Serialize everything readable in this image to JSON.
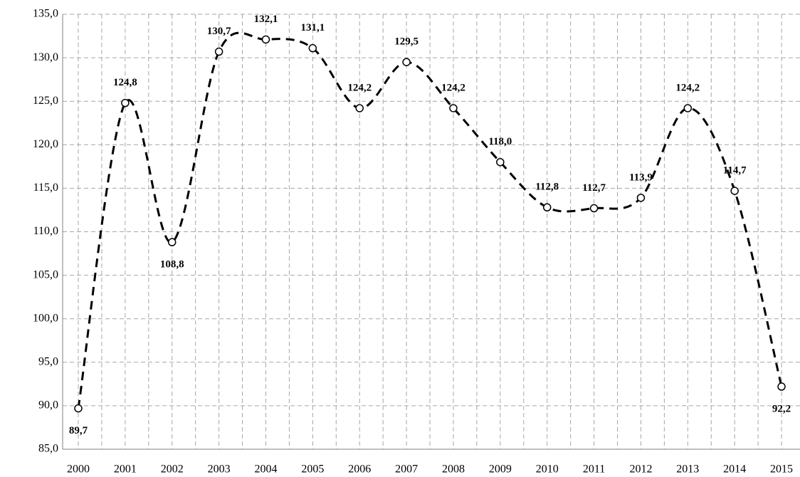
{
  "chart_data": {
    "type": "line",
    "categories": [
      "2000",
      "2001",
      "2002",
      "2003",
      "2004",
      "2005",
      "2006",
      "2007",
      "2008",
      "2009",
      "2010",
      "2011",
      "2012",
      "2013",
      "2014",
      "2015"
    ],
    "values": [
      89.7,
      124.8,
      108.8,
      130.7,
      132.1,
      131.1,
      124.2,
      129.5,
      124.2,
      118.0,
      112.8,
      112.7,
      113.9,
      124.2,
      114.7,
      92.2
    ],
    "value_labels": [
      "89,7",
      "124,8",
      "108,8",
      "130,7",
      "132,1",
      "131,1",
      "124,2",
      "129,5",
      "124,2",
      "118,0",
      "112,8",
      "112,7",
      "113,9",
      "124,2",
      "114,7",
      "92,2"
    ],
    "color": "#000000",
    "ylim": [
      85,
      135
    ],
    "yticks": [
      {
        "value": 85,
        "label": "85,0"
      },
      {
        "value": 90,
        "label": "90,0"
      },
      {
        "value": 95,
        "label": "95,0"
      },
      {
        "value": 100,
        "label": "100,0"
      },
      {
        "value": 105,
        "label": "105,0"
      },
      {
        "value": 110,
        "label": "110,0"
      },
      {
        "value": 115,
        "label": "115,0"
      },
      {
        "value": 120,
        "label": "120,0"
      },
      {
        "value": 125,
        "label": "125,0"
      },
      {
        "value": 130,
        "label": "130,0"
      },
      {
        "value": 135,
        "label": "135,0"
      }
    ],
    "grid": true
  }
}
